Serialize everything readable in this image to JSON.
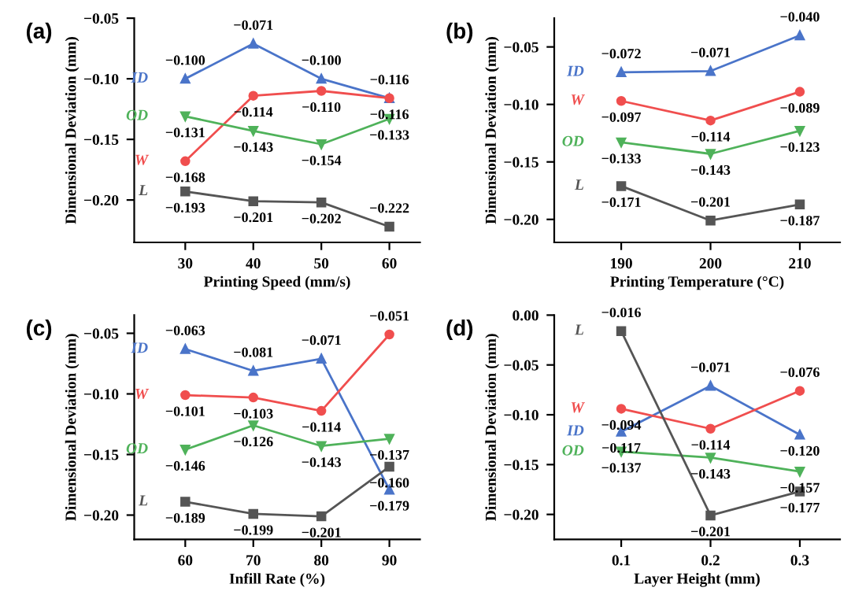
{
  "chart_data": [
    {
      "type": "line",
      "title": "(a)",
      "xlabel": "Printing Speed (mm/s)",
      "ylabel": "Dimensional Deviation (mm)",
      "categories": [
        "30",
        "40",
        "50",
        "60"
      ],
      "ylim": [
        -0.235,
        -0.05
      ],
      "yticks": [
        {
          "value": -0.2,
          "label": "−0.20"
        },
        {
          "value": -0.15,
          "label": "−0.15"
        },
        {
          "value": -0.1,
          "label": "−0.10"
        },
        {
          "value": -0.05,
          "label": "−0.05"
        }
      ],
      "grid": false,
      "legend": false,
      "series": [
        {
          "name": "ID",
          "color": "#4a74c9",
          "marker": "triangle",
          "values": [
            -0.1,
            -0.071,
            -0.1,
            -0.116
          ],
          "value_labels": [
            "−0.100",
            "−0.071",
            "−0.100",
            "−0.116"
          ]
        },
        {
          "name": "W",
          "color": "#f04e4e",
          "marker": "circle",
          "values": [
            -0.168,
            -0.114,
            -0.11,
            -0.116
          ],
          "value_labels": [
            "−0.168",
            "−0.114",
            "−0.110",
            "−0.116"
          ]
        },
        {
          "name": "OD",
          "color": "#4fb25a",
          "marker": "triangle_down",
          "values": [
            -0.131,
            -0.143,
            -0.154,
            -0.133
          ],
          "value_labels": [
            "−0.131",
            "−0.143",
            "−0.154",
            "−0.133"
          ]
        },
        {
          "name": "L",
          "color": "#555555",
          "marker": "square",
          "values": [
            -0.193,
            -0.201,
            -0.202,
            -0.222
          ],
          "value_labels": [
            "−0.193",
            "−0.201",
            "−0.202",
            "−0.222"
          ]
        }
      ]
    },
    {
      "type": "line",
      "title": "(b)",
      "xlabel": "Printing Temperature (°C)",
      "ylabel": "Dimensional Deviation (mm)",
      "categories": [
        "190",
        "200",
        "210"
      ],
      "ylim": [
        -0.22,
        -0.025
      ],
      "yticks": [
        {
          "value": -0.2,
          "label": "−0.20"
        },
        {
          "value": -0.15,
          "label": "−0.15"
        },
        {
          "value": -0.1,
          "label": "−0.10"
        },
        {
          "value": -0.05,
          "label": "−0.05"
        }
      ],
      "grid": false,
      "legend": false,
      "series": [
        {
          "name": "ID",
          "color": "#4a74c9",
          "marker": "triangle",
          "values": [
            -0.072,
            -0.071,
            -0.04
          ],
          "value_labels": [
            "−0.072",
            "−0.071",
            "−0.040"
          ]
        },
        {
          "name": "W",
          "color": "#f04e4e",
          "marker": "circle",
          "values": [
            -0.097,
            -0.114,
            -0.089
          ],
          "value_labels": [
            "−0.097",
            "−0.114",
            "−0.089"
          ]
        },
        {
          "name": "OD",
          "color": "#4fb25a",
          "marker": "triangle_down",
          "values": [
            -0.133,
            -0.143,
            -0.123
          ],
          "value_labels": [
            "−0.133",
            "−0.143",
            "−0.123"
          ]
        },
        {
          "name": "L",
          "color": "#555555",
          "marker": "square",
          "values": [
            -0.171,
            -0.201,
            -0.187
          ],
          "value_labels": [
            "−0.171",
            "−0.201",
            "−0.187"
          ]
        }
      ]
    },
    {
      "type": "line",
      "title": "(c)",
      "xlabel": "Infill Rate (%)",
      "ylabel": "Dimensional Deviation (mm)",
      "categories": [
        "60",
        "70",
        "80",
        "90"
      ],
      "ylim": [
        -0.22,
        -0.035
      ],
      "yticks": [
        {
          "value": -0.2,
          "label": "−0.20"
        },
        {
          "value": -0.15,
          "label": "−0.15"
        },
        {
          "value": -0.1,
          "label": "−0.10"
        },
        {
          "value": -0.05,
          "label": "−0.05"
        }
      ],
      "grid": false,
      "legend": false,
      "series": [
        {
          "name": "ID",
          "color": "#4a74c9",
          "marker": "triangle",
          "values": [
            -0.063,
            -0.081,
            -0.071,
            -0.179
          ],
          "value_labels": [
            "−0.063",
            "−0.081",
            "−0.071",
            "−0.179"
          ]
        },
        {
          "name": "W",
          "color": "#f04e4e",
          "marker": "circle",
          "values": [
            -0.101,
            -0.103,
            -0.114,
            -0.051
          ],
          "value_labels": [
            "−0.101",
            "−0.103",
            "−0.114",
            "−0.051"
          ]
        },
        {
          "name": "OD",
          "color": "#4fb25a",
          "marker": "triangle_down",
          "values": [
            -0.146,
            -0.126,
            -0.143,
            -0.137
          ],
          "value_labels": [
            "−0.146",
            "−0.126",
            "−0.143",
            "−0.137"
          ]
        },
        {
          "name": "L",
          "color": "#555555",
          "marker": "square",
          "values": [
            -0.189,
            -0.199,
            -0.201,
            -0.16
          ],
          "value_labels": [
            "−0.189",
            "−0.199",
            "−0.201",
            "−0.160"
          ]
        }
      ]
    },
    {
      "type": "line",
      "title": "(d)",
      "xlabel": "Layer Height (mm)",
      "ylabel": "Dimensional Deviation (mm)",
      "categories": [
        "0.1",
        "0.2",
        "0.3"
      ],
      "ylim": [
        -0.225,
        0.0
      ],
      "yticks": [
        {
          "value": -0.2,
          "label": "−0.20"
        },
        {
          "value": -0.15,
          "label": "−0.15"
        },
        {
          "value": -0.1,
          "label": "−0.10"
        },
        {
          "value": -0.05,
          "label": "−0.05"
        },
        {
          "value": 0.0,
          "label": "0.00"
        }
      ],
      "grid": false,
      "legend": false,
      "series": [
        {
          "name": "ID",
          "color": "#4a74c9",
          "marker": "triangle",
          "values": [
            -0.117,
            -0.071,
            -0.12
          ],
          "value_labels": [
            "−0.117",
            "−0.071",
            "−0.120"
          ]
        },
        {
          "name": "W",
          "color": "#f04e4e",
          "marker": "circle",
          "values": [
            -0.094,
            -0.114,
            -0.076
          ],
          "value_labels": [
            "−0.094",
            "−0.114",
            "−0.076"
          ]
        },
        {
          "name": "OD",
          "color": "#4fb25a",
          "marker": "triangle_down",
          "values": [
            -0.137,
            -0.143,
            -0.157
          ],
          "value_labels": [
            "−0.137",
            "−0.143",
            "−0.157"
          ]
        },
        {
          "name": "L",
          "color": "#555555",
          "marker": "square",
          "values": [
            -0.016,
            -0.201,
            -0.177
          ],
          "value_labels": [
            "−0.016",
            "−0.201",
            "−0.177"
          ]
        }
      ]
    }
  ]
}
